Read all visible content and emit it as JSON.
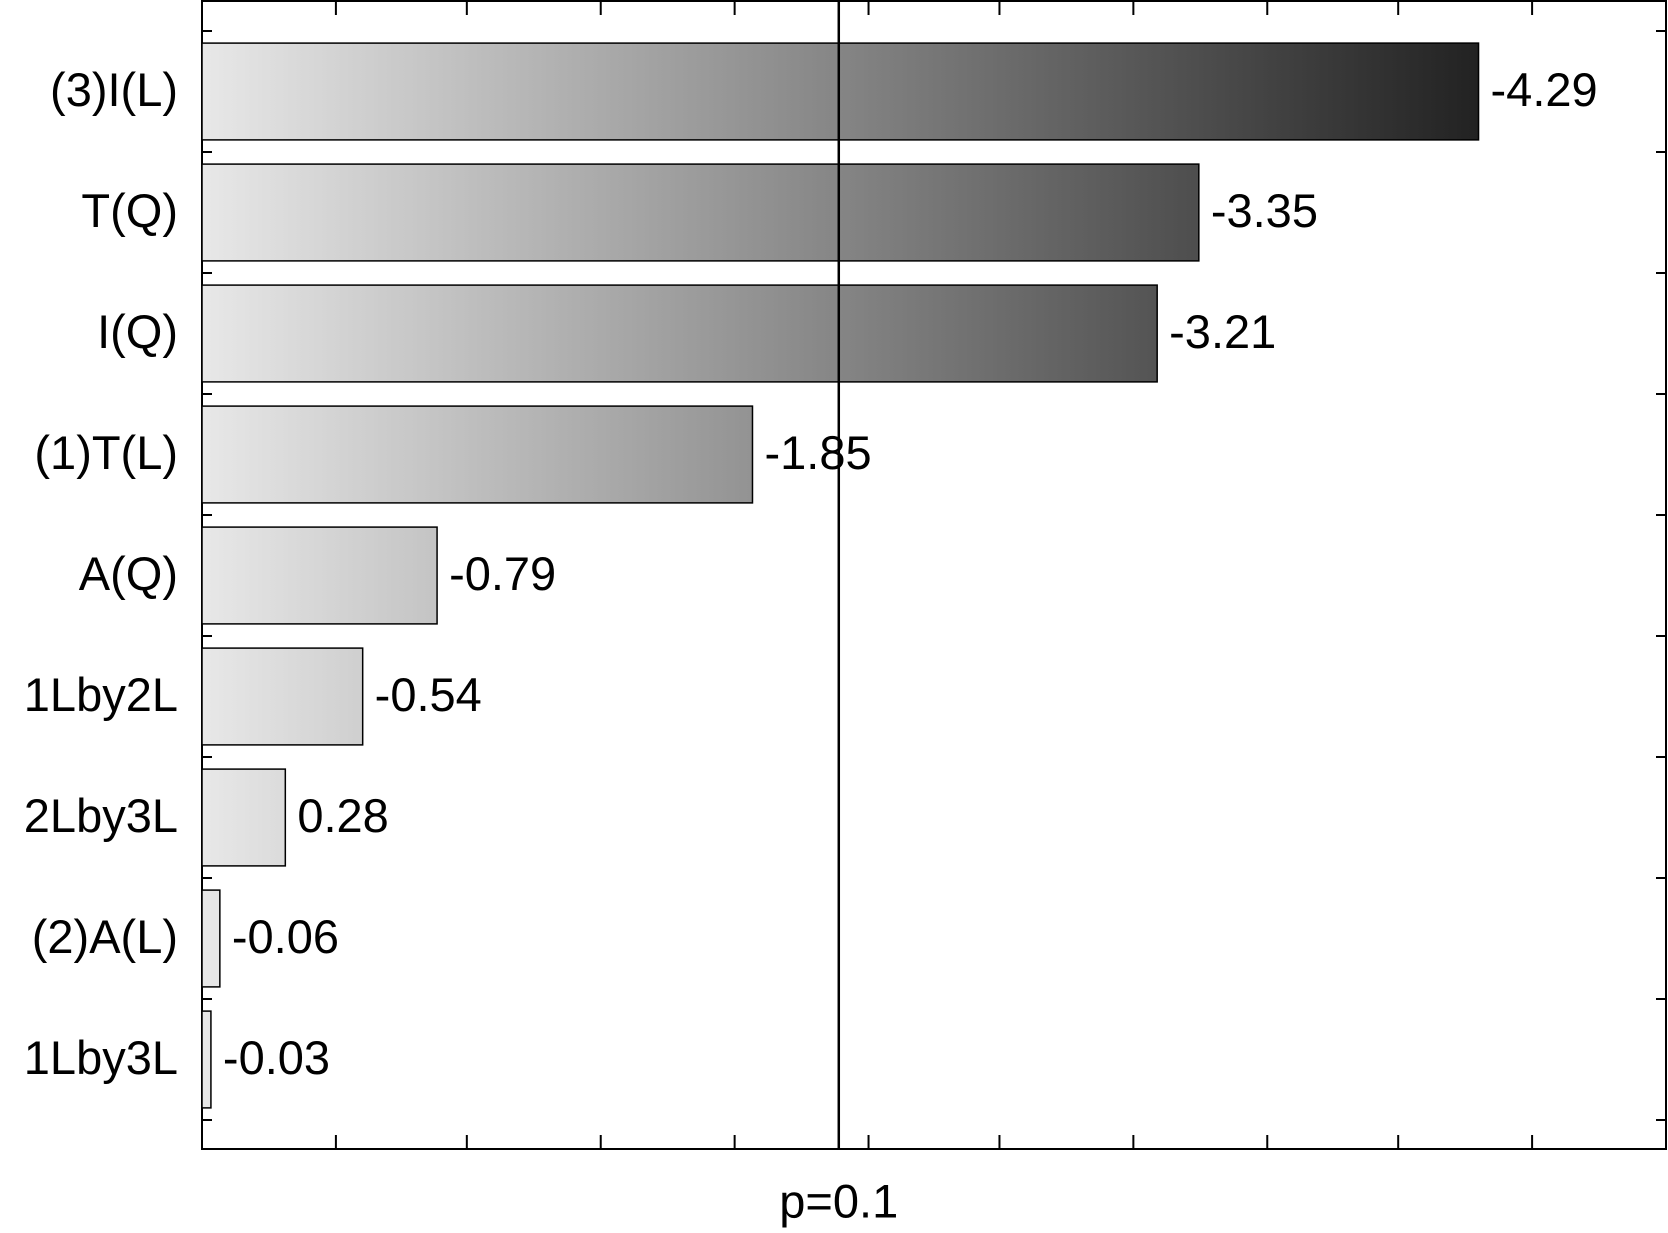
{
  "chart_data": {
    "type": "pareto",
    "categories": [
      "(3)I(L)",
      "T(Q)",
      "I(Q)",
      "(1)T(L)",
      "A(Q)",
      "1Lby2L",
      "2Lby3L",
      "(2)A(L)",
      "1Lby3L"
    ],
    "values": [
      -4.29,
      -3.35,
      -3.21,
      -1.85,
      -0.79,
      -0.54,
      0.28,
      -0.06,
      -0.03
    ],
    "xlim": [
      0,
      4.92
    ],
    "xticks": [
      0,
      0.45,
      0.89,
      1.34,
      1.79,
      2.24,
      2.68,
      3.13,
      3.58,
      4.02,
      4.47
    ],
    "reference_line": {
      "value": 2.14,
      "label": "p=0.1"
    },
    "color_start": "#e8e8e8",
    "color_end": "#222222"
  }
}
